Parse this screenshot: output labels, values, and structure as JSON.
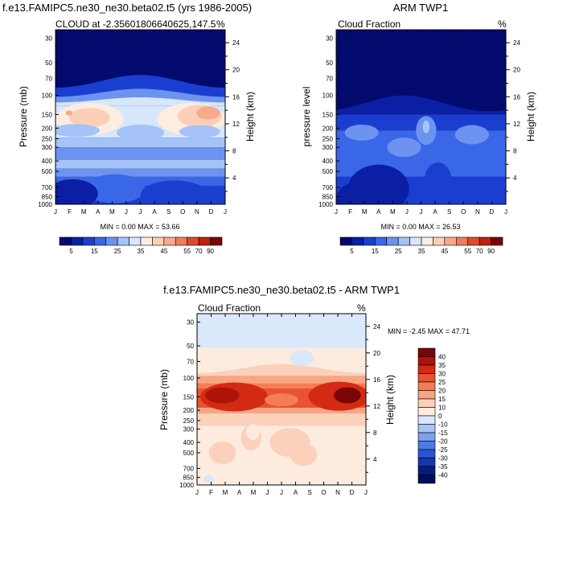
{
  "chart_data": [
    {
      "type": "heatmap",
      "title": "f.e13.FAMIPC5.ne30_ne30.beta02.t5 (yrs 1986-2005)",
      "subtitle_left": "CLOUD at -2.35601806640625,147.5",
      "subtitle_right": "%",
      "ylabel": "Pressure (mb)",
      "y2label": "Height (km)",
      "x_ticks": [
        "J",
        "F",
        "M",
        "A",
        "M",
        "J",
        "J",
        "A",
        "S",
        "O",
        "N",
        "D",
        "J"
      ],
      "y_ticks": [
        30,
        50,
        70,
        100,
        150,
        200,
        250,
        300,
        400,
        500,
        700,
        850,
        1000
      ],
      "y2_ticks": [
        24,
        20,
        16,
        12,
        8,
        4
      ],
      "y_scale": "log",
      "ylim": [
        1000,
        25
      ],
      "stats": "MIN =  0.00 MAX =  53.66",
      "colorbar_orientation": "horizontal",
      "colorbar_labels": [
        "5",
        "15",
        "25",
        "35",
        "45",
        "55",
        "70",
        "90"
      ]
    },
    {
      "type": "heatmap",
      "title": "ARM TWP1",
      "subtitle_left": "Cloud Fraction",
      "subtitle_right": "%",
      "ylabel": "pressure level",
      "y2label": "Height (km)",
      "x_ticks": [
        "J",
        "F",
        "M",
        "A",
        "M",
        "J",
        "J",
        "A",
        "S",
        "O",
        "N",
        "D",
        "J"
      ],
      "y_ticks": [
        30,
        50,
        70,
        100,
        150,
        200,
        250,
        300,
        400,
        500,
        700,
        850,
        1000
      ],
      "y2_ticks": [
        24,
        20,
        16,
        12,
        8,
        4
      ],
      "y_scale": "log",
      "ylim": [
        1000,
        25
      ],
      "stats": "MIN =  0.00 MAX =  26.53",
      "colorbar_orientation": "horizontal",
      "colorbar_labels": [
        "5",
        "15",
        "25",
        "35",
        "45",
        "55",
        "70",
        "90"
      ]
    },
    {
      "type": "heatmap",
      "title": "f.e13.FAMIPC5.ne30_ne30.beta02.t5 - ARM TWP1",
      "subtitle_left": "Cloud Fraction",
      "subtitle_right": "%",
      "ylabel": "Pressure (mb)",
      "y2label": "Height (km)",
      "x_ticks": [
        "J",
        "F",
        "M",
        "A",
        "M",
        "J",
        "J",
        "A",
        "S",
        "O",
        "N",
        "D",
        "J"
      ],
      "y_ticks": [
        30,
        50,
        70,
        100,
        150,
        200,
        250,
        300,
        400,
        500,
        700,
        850,
        1000
      ],
      "y2_ticks": [
        24,
        20,
        16,
        12,
        8,
        4
      ],
      "y_scale": "log",
      "ylim": [
        1000,
        25
      ],
      "stats": "MIN =  -2.45 MAX =  47.71",
      "colorbar_orientation": "vertical",
      "colorbar_labels": [
        "40",
        "35",
        "30",
        "25",
        "20",
        "15",
        "10",
        "0",
        "-10",
        "-15",
        "-20",
        "-25",
        "-30",
        "-35",
        "-40"
      ]
    }
  ],
  "colors": {
    "seq": [
      "#030a6e",
      "#0a1fa4",
      "#1a3fd0",
      "#3a66e8",
      "#6c93f0",
      "#a5c3f7",
      "#d6e6fb",
      "#fdece0",
      "#fbcfb6",
      "#f7a98d",
      "#ef7c5f",
      "#dd4a30",
      "#c0200f",
      "#7a0505"
    ],
    "div": [
      "#7a0505",
      "#b01208",
      "#d32a13",
      "#e9532f",
      "#f47d58",
      "#f8a584",
      "#fbd1bb",
      "#fdebdf",
      "#d9e8fb",
      "#a7c4f4",
      "#7aa0ee",
      "#4e7ae4",
      "#2855d3",
      "#1536ae",
      "#061c80",
      "#020c5a"
    ]
  }
}
